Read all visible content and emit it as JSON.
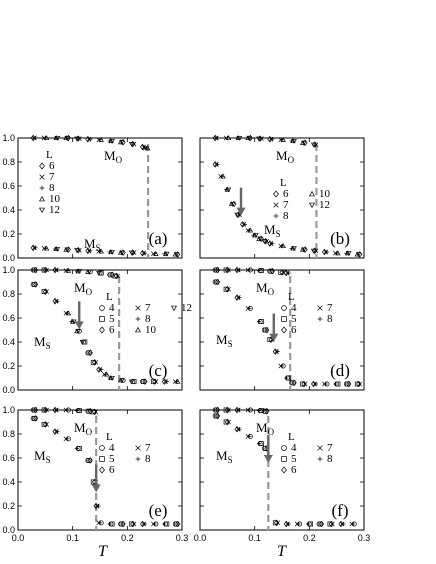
{
  "figure": {
    "x_axis_label": "T",
    "x_ticks": [
      "0.0",
      "0.1",
      "0.2",
      "0.3"
    ],
    "y_ticks": [
      "0.0",
      "0.2",
      "0.4",
      "0.6",
      "0.8",
      "1.0"
    ]
  },
  "chart_data": [
    {
      "type": "scatter",
      "panel_label": "(a)",
      "xlim": [
        0.0,
        0.3
      ],
      "ylim": [
        0.0,
        1.0
      ],
      "legend_title": "L",
      "legend_entries": [
        "6",
        "7",
        "8",
        "10",
        "12"
      ],
      "curve_labels": {
        "upper": "M",
        "upper_sub": "O",
        "lower": "M",
        "lower_sub": "S"
      },
      "transition_T": 0.238,
      "arrow_T": null,
      "series": [
        {
          "x": [
            0.03,
            0.05,
            0.07,
            0.09,
            0.11,
            0.13,
            0.15,
            0.17,
            0.19,
            0.21,
            0.23,
            0.235
          ],
          "values": [
            1.0,
            1.0,
            1.0,
            1.0,
            0.995,
            0.99,
            0.985,
            0.975,
            0.965,
            0.95,
            0.925,
            0.915
          ]
        },
        {
          "x": [
            0.03,
            0.05,
            0.07,
            0.09,
            0.11,
            0.13,
            0.15,
            0.17,
            0.19,
            0.21,
            0.23,
            0.25,
            0.27,
            0.29
          ],
          "values": [
            0.085,
            0.08,
            0.075,
            0.07,
            0.065,
            0.06,
            0.055,
            0.05,
            0.045,
            0.045,
            0.04,
            0.035,
            0.035,
            0.03
          ]
        }
      ]
    },
    {
      "type": "scatter",
      "panel_label": "(b)",
      "xlim": [
        0.0,
        0.3
      ],
      "ylim": [
        0.0,
        1.0
      ],
      "legend_title": "L",
      "legend_entries": [
        "6",
        "7",
        "8",
        "10",
        "12"
      ],
      "curve_labels": {
        "upper": "M",
        "upper_sub": "O",
        "lower": "M",
        "lower_sub": "S"
      },
      "transition_T": 0.213,
      "arrow_T": 0.075,
      "series": [
        {
          "x": [
            0.03,
            0.05,
            0.07,
            0.09,
            0.11,
            0.13,
            0.15,
            0.17,
            0.19,
            0.21
          ],
          "values": [
            1.0,
            1.0,
            1.0,
            1.0,
            0.995,
            0.99,
            0.985,
            0.975,
            0.96,
            0.945
          ]
        },
        {
          "x": [
            0.03,
            0.04,
            0.05,
            0.06,
            0.07,
            0.08,
            0.09,
            0.1,
            0.11,
            0.12,
            0.13,
            0.15,
            0.17,
            0.19,
            0.21,
            0.23,
            0.25,
            0.27,
            0.29
          ],
          "values": [
            0.78,
            0.68,
            0.57,
            0.45,
            0.36,
            0.28,
            0.23,
            0.19,
            0.16,
            0.14,
            0.12,
            0.1,
            0.08,
            0.07,
            0.06,
            0.05,
            0.04,
            0.04,
            0.03
          ]
        }
      ]
    },
    {
      "type": "scatter",
      "panel_label": "(c)",
      "xlim": [
        0.0,
        0.3
      ],
      "ylim": [
        0.0,
        1.0
      ],
      "legend_title": "L",
      "legend_entries": [
        "4",
        "5",
        "6",
        "7",
        "8",
        "10",
        "12"
      ],
      "curve_labels": {
        "upper": "M",
        "upper_sub": "O",
        "lower": "M",
        "lower_sub": "S"
      },
      "transition_T": 0.185,
      "arrow_T": 0.112,
      "series": [
        {
          "x": [
            0.03,
            0.05,
            0.07,
            0.09,
            0.11,
            0.13,
            0.15,
            0.17,
            0.18
          ],
          "values": [
            1.0,
            1.0,
            1.0,
            0.995,
            0.99,
            0.985,
            0.975,
            0.96,
            0.95
          ]
        },
        {
          "x": [
            0.03,
            0.05,
            0.07,
            0.09,
            0.1,
            0.11,
            0.12,
            0.13,
            0.14,
            0.15,
            0.16,
            0.17,
            0.19,
            0.21,
            0.23,
            0.25,
            0.27,
            0.29
          ],
          "values": [
            0.88,
            0.82,
            0.74,
            0.64,
            0.57,
            0.49,
            0.4,
            0.31,
            0.23,
            0.17,
            0.13,
            0.1,
            0.08,
            0.07,
            0.07,
            0.07,
            0.07,
            0.07
          ]
        }
      ]
    },
    {
      "type": "scatter",
      "panel_label": "(d)",
      "xlim": [
        0.0,
        0.3
      ],
      "ylim": [
        0.0,
        1.0
      ],
      "legend_title": "L",
      "legend_entries": [
        "4",
        "5",
        "6",
        "7",
        "8"
      ],
      "curve_labels": {
        "upper": "M",
        "upper_sub": "O",
        "lower": "M",
        "lower_sub": "S"
      },
      "transition_T": 0.165,
      "arrow_T": 0.135,
      "series": [
        {
          "x": [
            0.03,
            0.05,
            0.07,
            0.09,
            0.11,
            0.13,
            0.15,
            0.16
          ],
          "values": [
            1.0,
            1.0,
            1.0,
            1.0,
            0.995,
            0.99,
            0.98,
            0.975
          ]
        },
        {
          "x": [
            0.03,
            0.05,
            0.07,
            0.09,
            0.11,
            0.12,
            0.13,
            0.14,
            0.15,
            0.16,
            0.17,
            0.19,
            0.21,
            0.23,
            0.25,
            0.27,
            0.29
          ],
          "values": [
            0.9,
            0.84,
            0.77,
            0.68,
            0.57,
            0.5,
            0.42,
            0.32,
            0.2,
            0.1,
            0.06,
            0.05,
            0.05,
            0.05,
            0.05,
            0.05,
            0.05
          ]
        }
      ]
    },
    {
      "type": "scatter",
      "panel_label": "(e)",
      "xlim": [
        0.0,
        0.3
      ],
      "ylim": [
        0.0,
        1.0
      ],
      "legend_title": "L",
      "legend_entries": [
        "4",
        "5",
        "6",
        "7",
        "8"
      ],
      "curve_labels": {
        "upper": "M",
        "upper_sub": "O",
        "lower": "M",
        "lower_sub": "S"
      },
      "transition_T": 0.143,
      "arrow_T": 0.143,
      "series": [
        {
          "x": [
            0.03,
            0.05,
            0.07,
            0.09,
            0.11,
            0.13,
            0.14
          ],
          "values": [
            1.0,
            1.0,
            1.0,
            1.0,
            0.995,
            0.99,
            0.985
          ]
        },
        {
          "x": [
            0.03,
            0.05,
            0.07,
            0.09,
            0.11,
            0.13,
            0.14,
            0.145,
            0.15,
            0.17,
            0.19,
            0.21,
            0.23,
            0.25,
            0.27,
            0.29
          ],
          "values": [
            0.93,
            0.88,
            0.82,
            0.76,
            0.68,
            0.58,
            0.4,
            0.2,
            0.06,
            0.05,
            0.05,
            0.05,
            0.05,
            0.05,
            0.05,
            0.05
          ]
        }
      ]
    },
    {
      "type": "scatter",
      "panel_label": "(f)",
      "xlim": [
        0.0,
        0.3
      ],
      "ylim": [
        0.0,
        1.0
      ],
      "legend_title": "L",
      "legend_entries": [
        "4",
        "5",
        "6",
        "7",
        "8"
      ],
      "curve_labels": {
        "upper": "M",
        "upper_sub": "O",
        "lower": "M",
        "lower_sub": "S"
      },
      "transition_T": 0.125,
      "arrow_T": 0.125,
      "series": [
        {
          "x": [
            0.03,
            0.05,
            0.07,
            0.09,
            0.11,
            0.12
          ],
          "values": [
            1.0,
            1.0,
            1.0,
            1.0,
            0.995,
            0.99
          ]
        },
        {
          "x": [
            0.03,
            0.05,
            0.07,
            0.09,
            0.11,
            0.12,
            0.14,
            0.16,
            0.18,
            0.2,
            0.22,
            0.24,
            0.26,
            0.28
          ],
          "values": [
            0.95,
            0.9,
            0.84,
            0.78,
            0.72,
            0.68,
            0.06,
            0.05,
            0.05,
            0.05,
            0.05,
            0.05,
            0.05,
            0.05
          ]
        }
      ]
    }
  ]
}
